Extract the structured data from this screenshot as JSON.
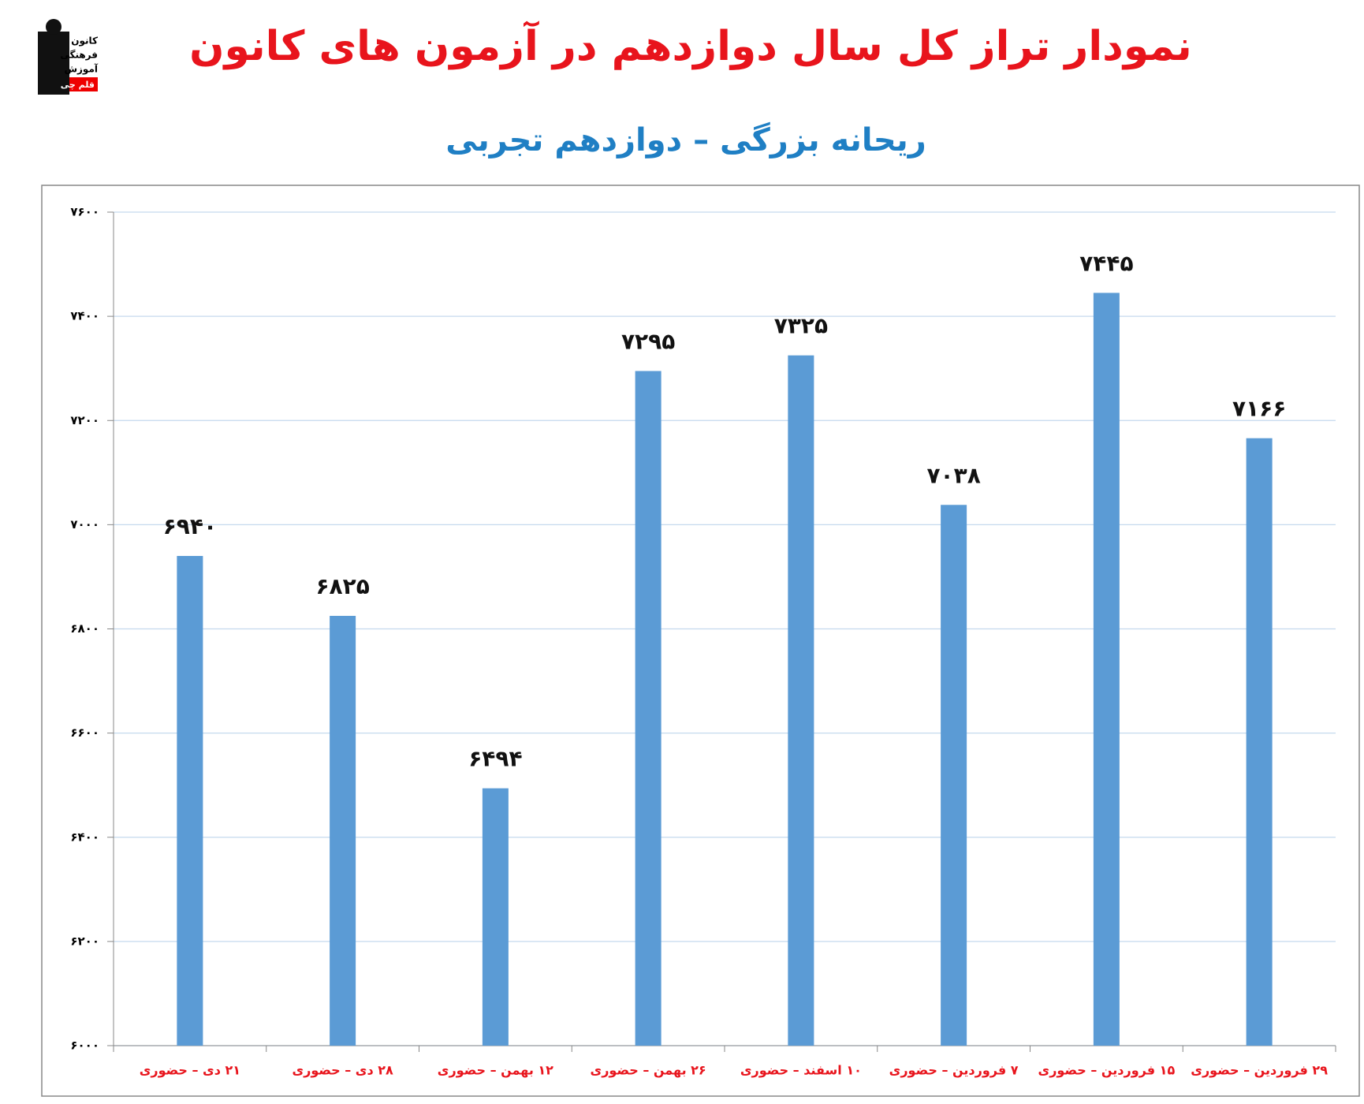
{
  "logo": [
    "کانون",
    "فرهنگی",
    "آموزش",
    "قلم چی"
  ],
  "chart_data": {
    "type": "bar",
    "title": "نمودار تراز کل سال دوازدهم در آزمون های کانون",
    "subtitle": "ریحانه بزرگی – دوازدهم تجربی",
    "categories": [
      "۲۱ دی – حضوری",
      "۲۸ دی – حضوری",
      "۱۲ بهمن – حضوری",
      "۲۶ بهمن – حضوری",
      "۱۰ اسفند – حضوری",
      "۷ فروردین – حضوری",
      "۱۵ فروردین – حضوری",
      "۲۹ فروردین – حضوری"
    ],
    "values": [
      6940,
      6825,
      6494,
      7295,
      7325,
      7038,
      7445,
      7166
    ],
    "value_labels": [
      "۶۹۴۰",
      "۶۸۲۵",
      "۶۴۹۴",
      "۷۲۹۵",
      "۷۳۲۵",
      "۷۰۳۸",
      "۷۴۴۵",
      "۷۱۶۶"
    ],
    "color": "#5b9bd5",
    "ylim": [
      6000,
      7600
    ],
    "yticks": [
      {
        "value": 6000,
        "label": "۶۰۰۰"
      },
      {
        "value": 6200,
        "label": "۶۲۰۰"
      },
      {
        "value": 6400,
        "label": "۶۴۰۰"
      },
      {
        "value": 6600,
        "label": "۶۶۰۰"
      },
      {
        "value": 6800,
        "label": "۶۸۰۰"
      },
      {
        "value": 7000,
        "label": "۷۰۰۰"
      },
      {
        "value": 7200,
        "label": "۷۲۰۰"
      },
      {
        "value": 7400,
        "label": "۷۴۰۰"
      },
      {
        "value": 7600,
        "label": "۷۶۰۰"
      }
    ],
    "grid": true
  }
}
